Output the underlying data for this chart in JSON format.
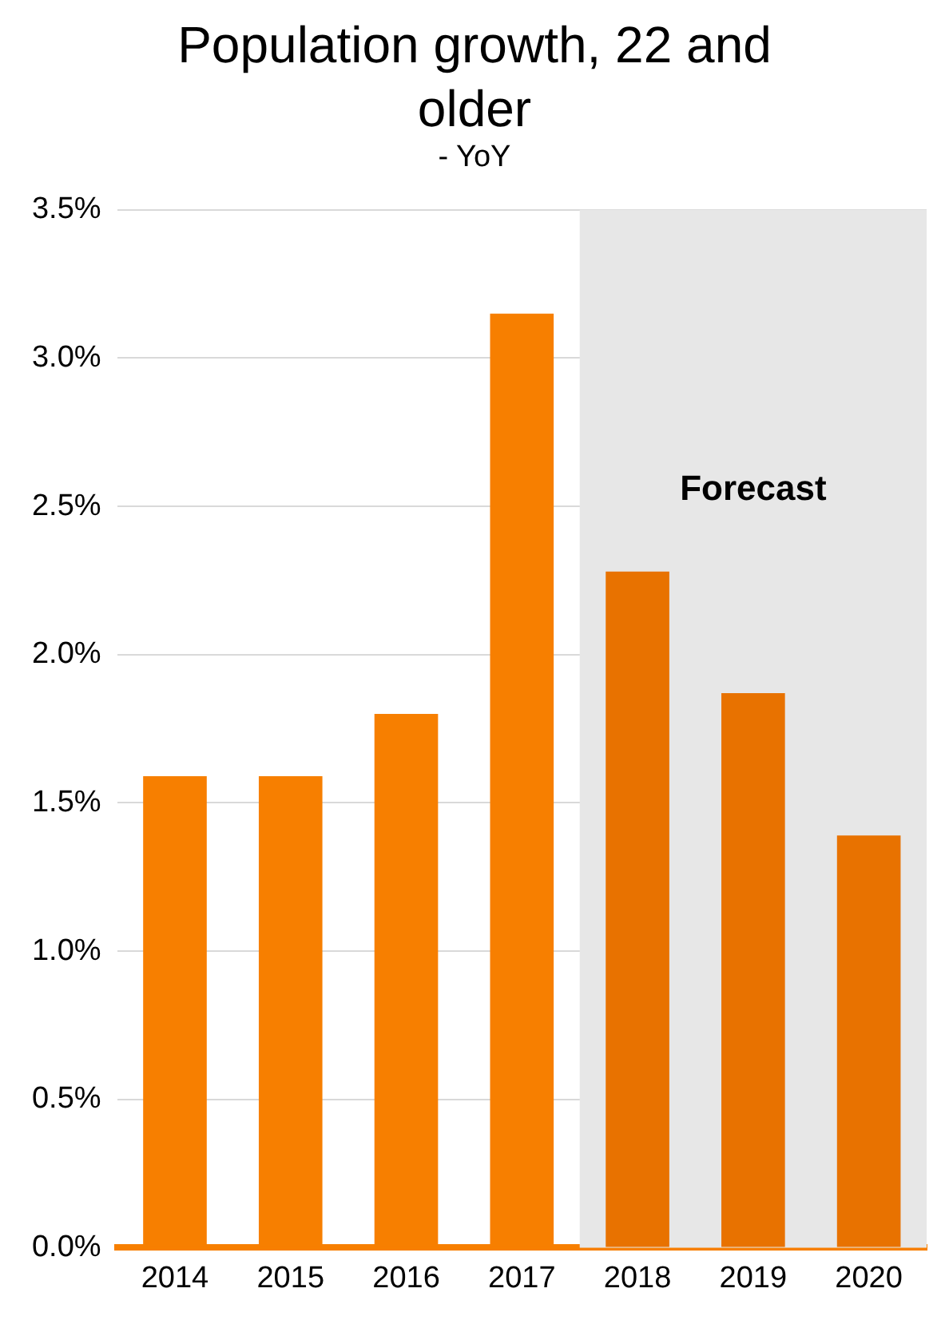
{
  "chart_data": {
    "type": "bar",
    "title": "Population growth, 22 and older",
    "subtitle": "- YoY",
    "categories": [
      "2014",
      "2015",
      "2016",
      "2017",
      "2018",
      "2019",
      "2020"
    ],
    "values": [
      1.59,
      1.59,
      1.8,
      3.15,
      2.28,
      1.87,
      1.39
    ],
    "colors": [
      "#f77f00",
      "#f77f00",
      "#f77f00",
      "#f77f00",
      "#e87200",
      "#e87200",
      "#e87200"
    ],
    "ylim": [
      0,
      3.5
    ],
    "yticks": [
      {
        "value": 0,
        "label": "0.0%"
      },
      {
        "value": 0.5,
        "label": "0.5%"
      },
      {
        "value": 1,
        "label": "1.0%"
      },
      {
        "value": 1.5,
        "label": "1.5%"
      },
      {
        "value": 2,
        "label": "2.0%"
      },
      {
        "value": 2.5,
        "label": "2.5%"
      },
      {
        "value": 3,
        "label": "3.0%"
      },
      {
        "value": 3.5,
        "label": "3.5%"
      }
    ],
    "bands": [
      {
        "axis": "x",
        "from": "2018",
        "to": "2020",
        "label": "Forecast",
        "color": "#e7e7e7"
      }
    ],
    "grid": "y",
    "legend": false
  }
}
